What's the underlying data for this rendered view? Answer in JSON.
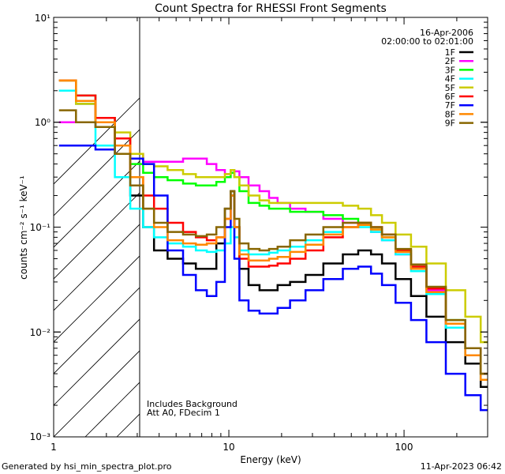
{
  "chart_data": {
    "type": "line",
    "title": "Count Spectra for RHESSI Front Segments",
    "xlabel": "Energy (keV)",
    "ylabel": "counts cm⁻² s⁻¹ keV⁻¹",
    "xscale": "log",
    "yscale": "log",
    "xlim": [
      1,
      300
    ],
    "ylim": [
      0.001,
      10
    ],
    "x_ticks": [
      {
        "value": 1,
        "label": "1"
      },
      {
        "value": 10,
        "label": "10"
      },
      {
        "value": 100,
        "label": "100"
      }
    ],
    "y_ticks": [
      {
        "value": 0.001,
        "label": "10⁻³"
      },
      {
        "value": 0.01,
        "label": "10⁻²"
      },
      {
        "value": 0.1,
        "label": "10⁻¹"
      },
      {
        "value": 1,
        "label": "10⁰"
      },
      {
        "value": 10,
        "label": "10¹"
      }
    ],
    "hatched_region": {
      "x": [
        1,
        3
      ],
      "label": "below 3 keV"
    },
    "annotations": [
      "16-Apr-2006",
      "02:00:00 to 02:01:00",
      "Includes Background",
      "Att A0, FDecim 1"
    ],
    "legend_position": "top-right",
    "series": [
      {
        "name": "1F",
        "color": "#000000",
        "x": [
          1.2,
          1.5,
          2,
          2.5,
          3,
          3.5,
          4,
          5,
          6,
          7,
          8,
          9,
          10,
          10.5,
          11,
          12,
          14,
          16,
          18,
          20,
          25,
          30,
          40,
          50,
          60,
          70,
          80,
          100,
          120,
          150,
          200,
          250,
          300
        ],
        "values": [
          2.0,
          1.5,
          0.9,
          0.5,
          0.2,
          0.1,
          0.06,
          0.05,
          0.045,
          0.04,
          0.04,
          0.07,
          0.15,
          0.22,
          0.1,
          0.04,
          0.028,
          0.025,
          0.025,
          0.028,
          0.03,
          0.035,
          0.045,
          0.055,
          0.06,
          0.055,
          0.045,
          0.032,
          0.022,
          0.014,
          0.008,
          0.005,
          0.003
        ]
      },
      {
        "name": "2F",
        "color": "#ff00ff",
        "x": [
          1.2,
          1.5,
          2,
          2.5,
          3,
          3.5,
          4,
          5,
          6,
          7,
          8,
          9,
          10,
          10.5,
          11,
          12,
          14,
          16,
          18,
          20,
          25,
          30,
          40,
          50,
          60,
          70,
          80,
          100,
          120,
          150,
          200,
          250,
          300
        ],
        "values": [
          1.0,
          1.0,
          0.9,
          0.7,
          0.5,
          0.42,
          0.42,
          0.42,
          0.45,
          0.45,
          0.4,
          0.35,
          0.32,
          0.35,
          0.34,
          0.3,
          0.25,
          0.22,
          0.19,
          0.17,
          0.15,
          0.14,
          0.12,
          0.11,
          0.105,
          0.09,
          0.075,
          0.055,
          0.04,
          0.025,
          0.012,
          0.007,
          0.004
        ]
      },
      {
        "name": "3F",
        "color": "#00ff00",
        "x": [
          1.2,
          1.5,
          2,
          2.5,
          3,
          3.5,
          4,
          5,
          6,
          7,
          8,
          9,
          10,
          10.5,
          11,
          12,
          14,
          16,
          18,
          20,
          25,
          30,
          40,
          50,
          60,
          70,
          80,
          100,
          120,
          150,
          200,
          250,
          300
        ],
        "values": [
          2.5,
          1.8,
          1.1,
          0.7,
          0.4,
          0.33,
          0.3,
          0.28,
          0.26,
          0.25,
          0.25,
          0.27,
          0.3,
          0.33,
          0.3,
          0.22,
          0.17,
          0.16,
          0.15,
          0.15,
          0.14,
          0.14,
          0.13,
          0.12,
          0.11,
          0.095,
          0.08,
          0.06,
          0.042,
          0.026,
          0.013,
          0.007,
          0.004
        ]
      },
      {
        "name": "4F",
        "color": "#00ffff",
        "x": [
          1.2,
          1.5,
          2,
          2.5,
          3,
          3.5,
          4,
          5,
          6,
          7,
          8,
          9,
          10,
          10.5,
          11,
          12,
          14,
          16,
          18,
          20,
          25,
          30,
          40,
          50,
          60,
          70,
          80,
          100,
          120,
          150,
          200,
          250,
          300
        ],
        "values": [
          2.0,
          1.5,
          0.6,
          0.3,
          0.15,
          0.1,
          0.08,
          0.07,
          0.065,
          0.06,
          0.058,
          0.06,
          0.07,
          0.1,
          0.08,
          0.06,
          0.055,
          0.055,
          0.057,
          0.06,
          0.065,
          0.075,
          0.09,
          0.1,
          0.1,
          0.09,
          0.075,
          0.055,
          0.038,
          0.023,
          0.011,
          0.006,
          0.0035
        ]
      },
      {
        "name": "5F",
        "color": "#cccc00",
        "x": [
          1.2,
          1.5,
          2,
          2.5,
          3,
          3.5,
          4,
          5,
          6,
          7,
          8,
          9,
          10,
          10.5,
          11,
          12,
          14,
          16,
          18,
          20,
          25,
          30,
          40,
          50,
          60,
          70,
          80,
          100,
          120,
          150,
          200,
          250,
          300
        ],
        "values": [
          2.5,
          1.5,
          1.0,
          0.8,
          0.5,
          0.4,
          0.38,
          0.35,
          0.32,
          0.3,
          0.3,
          0.3,
          0.32,
          0.35,
          0.3,
          0.25,
          0.2,
          0.18,
          0.17,
          0.17,
          0.17,
          0.17,
          0.17,
          0.16,
          0.15,
          0.13,
          0.11,
          0.085,
          0.065,
          0.045,
          0.025,
          0.014,
          0.008
        ]
      },
      {
        "name": "6F",
        "color": "#ff0000",
        "x": [
          1.2,
          1.5,
          2,
          2.5,
          3,
          3.5,
          4,
          5,
          6,
          7,
          8,
          9,
          10,
          10.5,
          11,
          12,
          14,
          16,
          18,
          20,
          25,
          30,
          40,
          50,
          60,
          70,
          80,
          100,
          120,
          150,
          200,
          250,
          300
        ],
        "values": [
          2.5,
          1.8,
          1.1,
          0.7,
          0.3,
          0.2,
          0.15,
          0.11,
          0.09,
          0.08,
          0.075,
          0.08,
          0.12,
          0.2,
          0.1,
          0.05,
          0.042,
          0.042,
          0.043,
          0.045,
          0.05,
          0.06,
          0.08,
          0.1,
          0.11,
          0.1,
          0.085,
          0.06,
          0.042,
          0.026,
          0.012,
          0.007,
          0.004
        ]
      },
      {
        "name": "7F",
        "color": "#0000ff",
        "x": [
          1.2,
          1.5,
          2,
          2.5,
          3,
          3.5,
          4,
          5,
          6,
          7,
          8,
          9,
          10,
          10.5,
          11,
          12,
          14,
          16,
          18,
          20,
          25,
          30,
          40,
          50,
          60,
          70,
          80,
          100,
          120,
          150,
          200,
          250,
          300
        ],
        "values": [
          0.6,
          0.6,
          0.55,
          0.5,
          0.45,
          0.4,
          0.2,
          0.06,
          0.035,
          0.025,
          0.022,
          0.03,
          0.1,
          0.2,
          0.05,
          0.02,
          0.016,
          0.015,
          0.015,
          0.017,
          0.02,
          0.025,
          0.032,
          0.04,
          0.042,
          0.036,
          0.028,
          0.019,
          0.013,
          0.008,
          0.004,
          0.0025,
          0.0018
        ]
      },
      {
        "name": "8F",
        "color": "#ff8800",
        "x": [
          1.2,
          1.5,
          2,
          2.5,
          3,
          3.5,
          4,
          5,
          6,
          7,
          8,
          9,
          10,
          10.5,
          11,
          12,
          14,
          16,
          18,
          20,
          25,
          30,
          40,
          50,
          60,
          70,
          80,
          100,
          120,
          150,
          200,
          250,
          300
        ],
        "values": [
          2.5,
          1.6,
          1.0,
          0.6,
          0.3,
          0.15,
          0.1,
          0.075,
          0.07,
          0.068,
          0.07,
          0.08,
          0.12,
          0.2,
          0.1,
          0.055,
          0.048,
          0.048,
          0.05,
          0.052,
          0.058,
          0.068,
          0.085,
          0.1,
          0.105,
          0.095,
          0.08,
          0.058,
          0.04,
          0.024,
          0.012,
          0.006,
          0.0035
        ]
      },
      {
        "name": "9F",
        "color": "#886600",
        "x": [
          1.2,
          1.5,
          2,
          2.5,
          3,
          3.5,
          4,
          5,
          6,
          7,
          8,
          9,
          10,
          10.5,
          11,
          12,
          14,
          16,
          18,
          20,
          25,
          30,
          40,
          50,
          60,
          70,
          80,
          100,
          120,
          150,
          200,
          250,
          300
        ],
        "values": [
          1.3,
          1.0,
          0.9,
          0.5,
          0.25,
          0.15,
          0.11,
          0.09,
          0.085,
          0.082,
          0.085,
          0.1,
          0.15,
          0.22,
          0.12,
          0.07,
          0.062,
          0.06,
          0.062,
          0.065,
          0.075,
          0.085,
          0.1,
          0.11,
          0.11,
          0.1,
          0.085,
          0.062,
          0.044,
          0.027,
          0.013,
          0.007,
          0.004
        ]
      }
    ]
  },
  "footer": {
    "generated_by": "Generated by hsi_min_spectra_plot.pro",
    "timestamp": "11-Apr-2023 06:42"
  }
}
